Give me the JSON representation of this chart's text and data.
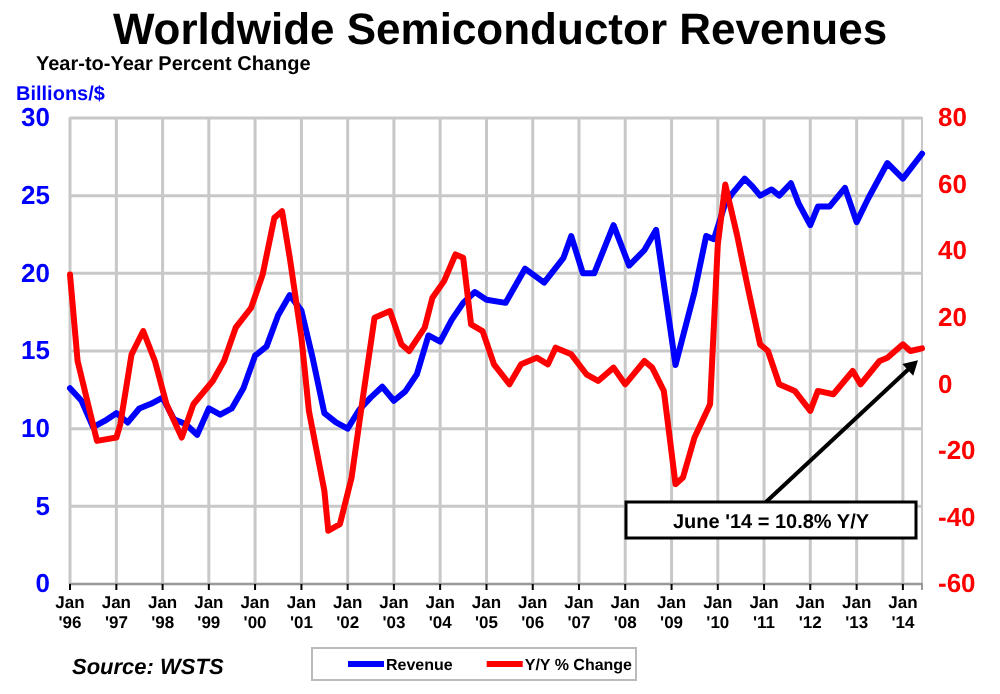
{
  "chart_data": {
    "type": "line",
    "title": "Worldwide Semiconductor Revenues",
    "subtitle": "Year-to-Year Percent Change",
    "ylabel": "Billions/$",
    "annotations": [
      "Source: WSTS",
      "June '14 = 10.8% Y/Y"
    ],
    "xlim": [
      "1996-01",
      "2014-06"
    ],
    "xticks": [
      {
        "value": "1996-01",
        "label": "Jan '96"
      },
      {
        "value": "1997-01",
        "label": "Jan '97"
      },
      {
        "value": "1998-01",
        "label": "Jan '98"
      },
      {
        "value": "1999-01",
        "label": "Jan '99"
      },
      {
        "value": "2000-01",
        "label": "Jan '00"
      },
      {
        "value": "2001-01",
        "label": "Jan '01"
      },
      {
        "value": "2002-01",
        "label": "Jan '02"
      },
      {
        "value": "2003-01",
        "label": "Jan '03"
      },
      {
        "value": "2004-01",
        "label": "Jan '04"
      },
      {
        "value": "2005-01",
        "label": "Jan '05"
      },
      {
        "value": "2006-01",
        "label": "Jan '06"
      },
      {
        "value": "2007-01",
        "label": "Jan '07"
      },
      {
        "value": "2008-01",
        "label": "Jan '08"
      },
      {
        "value": "2009-01",
        "label": "Jan '09"
      },
      {
        "value": "2010-01",
        "label": "Jan '10"
      },
      {
        "value": "2011-01",
        "label": "Jan '11"
      },
      {
        "value": "2012-01",
        "label": "Jan '12"
      },
      {
        "value": "2013-01",
        "label": "Jan '13"
      },
      {
        "value": "2014-01",
        "label": "Jan '14"
      }
    ],
    "ylim": [
      0,
      30
    ],
    "yticks": [
      0,
      5,
      10,
      15,
      20,
      25,
      30
    ],
    "y2lim": [
      -60,
      80
    ],
    "y2ticks": [
      -60,
      -40,
      -20,
      0,
      20,
      40,
      60,
      80
    ],
    "grid": true,
    "legend": "bottom",
    "marker": "none",
    "line_style": "solid",
    "series": [
      {
        "name": "Revenue",
        "color": "#0000ff",
        "x": [
          "1996-01",
          "1996-04",
          "1996-07",
          "1996-10",
          "1997-01",
          "1997-04",
          "1997-07",
          "1997-10",
          "1998-01",
          "1998-04",
          "1998-07",
          "1998-10",
          "1999-01",
          "1999-04",
          "1999-07",
          "1999-10",
          "2000-01",
          "2000-04",
          "2000-07",
          "2000-10",
          "2001-01",
          "2001-04",
          "2001-07",
          "2001-10",
          "2002-01",
          "2002-04",
          "2002-07",
          "2002-10",
          "2003-01",
          "2003-04",
          "2003-07",
          "2003-10",
          "2004-01",
          "2004-04",
          "2004-07",
          "2004-10",
          "2005-01",
          "2005-06",
          "2005-11",
          "2006-04",
          "2006-09",
          "2006-11",
          "2007-02",
          "2007-05",
          "2007-10",
          "2008-02",
          "2008-06",
          "2008-09",
          "2009-02",
          "2009-07",
          "2009-10",
          "2009-12",
          "2010-03",
          "2010-05",
          "2010-08",
          "2010-10",
          "2010-12",
          "2011-03",
          "2011-05",
          "2011-08",
          "2011-10",
          "2012-01",
          "2012-03",
          "2012-06",
          "2012-10",
          "2013-01",
          "2013-04",
          "2013-09",
          "2014-01",
          "2014-06"
        ],
        "values": [
          12.6,
          11.8,
          10.1,
          10.5,
          11.0,
          10.4,
          11.3,
          11.6,
          12.0,
          10.6,
          10.3,
          9.6,
          11.3,
          10.9,
          11.3,
          12.6,
          14.7,
          15.3,
          17.3,
          18.6,
          17.6,
          14.5,
          11.0,
          10.4,
          10.0,
          11.2,
          12.0,
          12.7,
          11.8,
          12.4,
          13.5,
          16.0,
          15.6,
          17.0,
          18.1,
          18.8,
          18.3,
          18.1,
          20.3,
          19.4,
          21.0,
          22.4,
          20.0,
          20.0,
          23.1,
          20.5,
          21.5,
          22.8,
          14.1,
          18.8,
          22.4,
          22.2,
          24.5,
          25.2,
          26.1,
          25.6,
          25.0,
          25.4,
          25.0,
          25.8,
          24.5,
          23.1,
          24.3,
          24.3,
          25.5,
          23.3,
          24.8,
          27.1,
          26.1,
          27.7
        ]
      },
      {
        "name": "Y/Y % Change",
        "color": "#ff0000",
        "axis": "y2",
        "x": [
          "1996-01",
          "1996-03",
          "1996-08",
          "1997-01",
          "1997-02",
          "1997-05",
          "1997-08",
          "1997-11",
          "1998-02",
          "1998-06",
          "1998-09",
          "1999-02",
          "1999-05",
          "1999-08",
          "1999-12",
          "2000-03",
          "2000-06",
          "2000-08",
          "2000-10",
          "2001-01",
          "2001-03",
          "2001-07",
          "2001-08",
          "2001-11",
          "2002-02",
          "2002-05",
          "2002-08",
          "2002-12",
          "2003-03",
          "2003-05",
          "2003-09",
          "2003-11",
          "2004-02",
          "2004-05",
          "2004-07",
          "2004-09",
          "2004-12",
          "2005-03",
          "2005-07",
          "2005-10",
          "2006-02",
          "2006-05",
          "2006-07",
          "2006-11",
          "2007-03",
          "2007-06",
          "2007-10",
          "2008-01",
          "2008-06",
          "2008-08",
          "2008-11",
          "2009-02",
          "2009-04",
          "2009-07",
          "2009-11",
          "2010-01",
          "2010-03",
          "2010-06",
          "2010-09",
          "2010-12",
          "2011-02",
          "2011-05",
          "2011-09",
          "2012-01",
          "2012-03",
          "2012-07",
          "2012-12",
          "2013-02",
          "2013-07",
          "2013-09",
          "2014-01",
          "2014-03",
          "2014-06"
        ],
        "values": [
          33,
          7,
          -17,
          -16,
          -12,
          9,
          16,
          7,
          -6,
          -16,
          -6,
          1,
          7,
          17,
          23,
          33,
          50,
          52,
          38,
          14,
          -8,
          -32,
          -44,
          -42,
          -28,
          -4,
          20,
          22,
          12,
          10,
          17,
          26,
          31,
          39,
          38,
          18,
          16,
          6,
          0,
          6,
          8,
          6,
          11,
          9,
          3,
          1,
          5,
          0,
          7,
          5,
          -2,
          -30,
          -28,
          -16,
          -6,
          42,
          60,
          45,
          28,
          12,
          10,
          0,
          -2,
          -8,
          -2,
          -3,
          4,
          0,
          7,
          8,
          12,
          10,
          10.8
        ]
      }
    ]
  }
}
